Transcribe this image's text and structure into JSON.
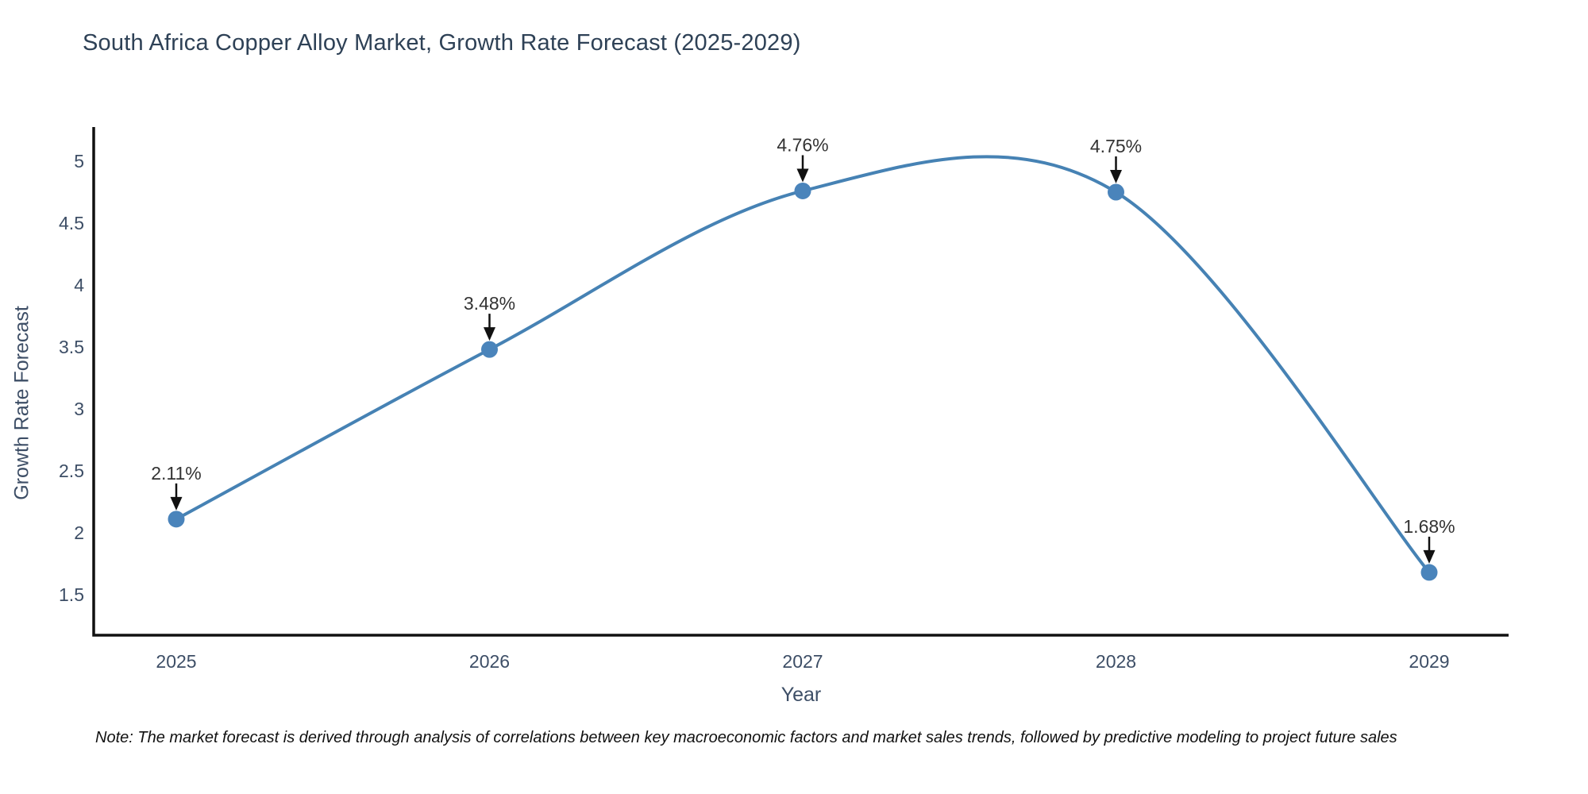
{
  "chart_data": {
    "type": "line",
    "title": "South Africa Copper Alloy Market, Growth Rate Forecast (2025-2029)",
    "xlabel": "Year",
    "ylabel": "Growth Rate Forecast",
    "x": [
      "2025",
      "2026",
      "2027",
      "2028",
      "2029"
    ],
    "y": [
      2.11,
      3.48,
      4.76,
      4.75,
      1.68
    ],
    "point_labels": [
      "2.11%",
      "3.48%",
      "4.76%",
      "4.75%",
      "1.68%"
    ],
    "yticks": [
      "5",
      "4.5",
      "4",
      "3.5",
      "3",
      "2.5",
      "2",
      "1.5"
    ],
    "ytick_values": [
      5,
      4.5,
      4,
      3.5,
      3,
      2.5,
      2,
      1.5
    ],
    "ylim": [
      1.17,
      5.28
    ],
    "line_shape": "spline",
    "grid": false,
    "legend_position": "none",
    "colors": {
      "line": "#4682b4",
      "marker": "#4a84bb",
      "annotation_arrow": "#111111",
      "axis_spine": "#111111",
      "title_text": "#2e4156",
      "tick_text": "#3d4e66",
      "point_label_text": "#333333"
    }
  },
  "footnote": {
    "text": "Note: The market forecast is derived through analysis of correlations between key macroeconomic factors and market sales trends, followed by predictive modeling to project future sales"
  }
}
